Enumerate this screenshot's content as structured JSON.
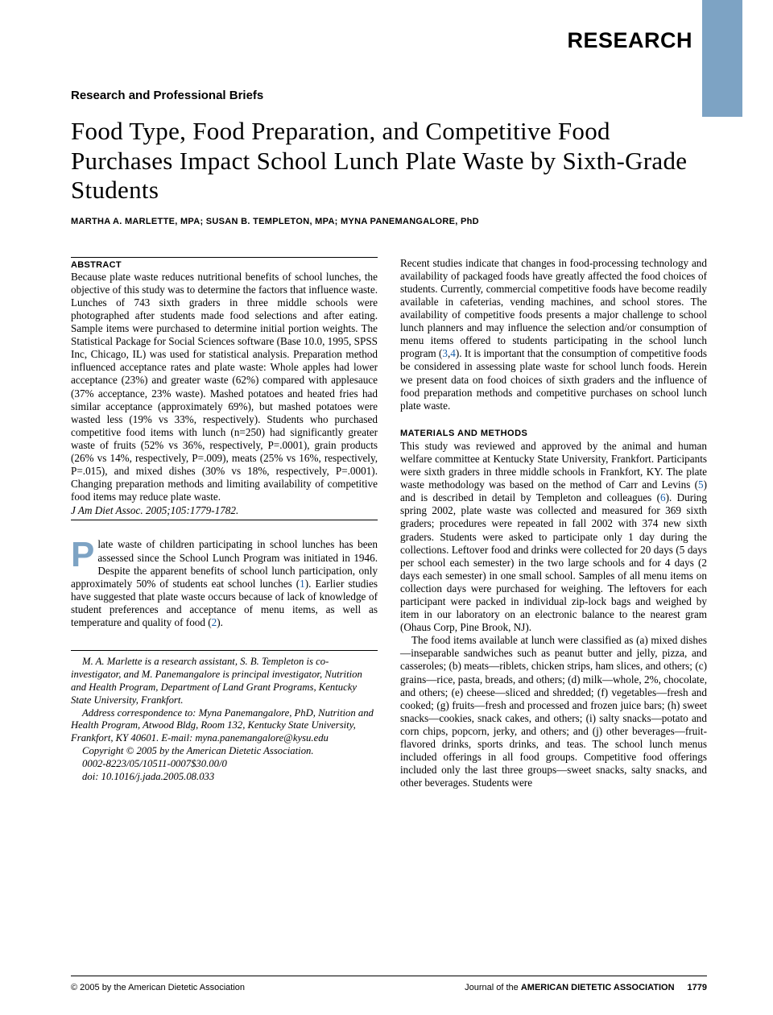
{
  "colors": {
    "accent": "#7da3c4",
    "link": "#1a5fa8",
    "text": "#000000",
    "background": "#ffffff"
  },
  "header": {
    "research": "RESEARCH",
    "brief": "Research and Professional Briefs"
  },
  "title": "Food Type, Food Preparation, and Competitive Food Purchases Impact School Lunch Plate Waste by Sixth-Grade Students",
  "authors": "MARTHA A. MARLETTE, MPA; SUSAN B. TEMPLETON, MPA; MYNA PANEMANGALORE, PhD",
  "abstract": {
    "label": "ABSTRACT",
    "body": "Because plate waste reduces nutritional benefits of school lunches, the objective of this study was to determine the factors that influence waste. Lunches of 743 sixth graders in three middle schools were photographed after students made food selections and after eating. Sample items were purchased to determine initial portion weights. The Statistical Package for Social Sciences software (Base 10.0, 1995, SPSS Inc, Chicago, IL) was used for statistical analysis. Preparation method influenced acceptance rates and plate waste: Whole apples had lower acceptance (23%) and greater waste (62%) compared with applesauce (37% acceptance, 23% waste). Mashed potatoes and heated fries had similar acceptance (approximately 69%), but mashed potatoes were wasted less (19% vs 33%, respectively). Students who purchased competitive food items with lunch (n=250) had significantly greater waste of fruits (52% vs 36%, respectively, P=.0001), grain products (26% vs 14%, respectively, P=.009), meats (25% vs 16%, respectively, P=.015), and mixed dishes (30% vs 18%, respectively, P=.0001). Changing preparation methods and limiting availability of competitive food items may reduce plate waste.",
    "citation": "J Am Diet Assoc. 2005;105:1779-1782."
  },
  "intro": {
    "dropcap": "P",
    "para1": "late waste of children participating in school lunches has been assessed since the School Lunch Program was initiated in 1946. Despite the apparent benefits of school lunch participation, only approximately 50% of students eat school lunches (1). Earlier studies have suggested that plate waste occurs because of lack of knowledge of student preferences and acceptance of menu items, as well as temperature and quality of food (2)."
  },
  "authorblock": {
    "affil": "M. A. Marlette is a research assistant, S. B. Templeton is co-investigator, and M. Panemangalore is principal investigator, Nutrition and Health Program, Department of Land Grant Programs, Kentucky State University, Frankfort.",
    "corr": "Address correspondence to: Myna Panemangalore, PhD, Nutrition and Health Program, Atwood Bldg, Room 132, Kentucky State University, Frankfort, KY 40601. E-mail: myna.panemangalore@kysu.edu",
    "copyright": "Copyright © 2005 by the American Dietetic Association.",
    "code": "0002-8223/05/10511-0007$30.00/0",
    "doi": "doi: 10.1016/j.jada.2005.08.033"
  },
  "col2": {
    "para1": "Recent studies indicate that changes in food-processing technology and availability of packaged foods have greatly affected the food choices of students. Currently, commercial competitive foods have become readily available in cafeterias, vending machines, and school stores. The availability of competitive foods presents a major challenge to school lunch planners and may influence the selection and/or consumption of menu items offered to students participating in the school lunch program (3,4). It is important that the consumption of competitive foods be considered in assessing plate waste for school lunch foods. Herein we present data on food choices of sixth graders and the influence of food preparation methods and competitive purchases on school lunch plate waste.",
    "methods_head": "MATERIALS AND METHODS",
    "para2": "This study was reviewed and approved by the animal and human welfare committee at Kentucky State University, Frankfort. Participants were sixth graders in three middle schools in Frankfort, KY. The plate waste methodology was based on the method of Carr and Levins (5) and is described in detail by Templeton and colleagues (6). During spring 2002, plate waste was collected and measured for 369 sixth graders; procedures were repeated in fall 2002 with 374 new sixth graders. Students were asked to participate only 1 day during the collections. Leftover food and drinks were collected for 20 days (5 days per school each semester) in the two large schools and for 4 days (2 days each semester) in one small school. Samples of all menu items on collection days were purchased for weighing. The leftovers for each participant were packed in individual zip-lock bags and weighed by item in our laboratory on an electronic balance to the nearest gram (Ohaus Corp, Pine Brook, NJ).",
    "para3": "The food items available at lunch were classified as (a) mixed dishes—inseparable sandwiches such as peanut butter and jelly, pizza, and casseroles; (b) meats—riblets, chicken strips, ham slices, and others; (c) grains—rice, pasta, breads, and others; (d) milk—whole, 2%, chocolate, and others; (e) cheese—sliced and shredded; (f) vegetables—fresh and cooked; (g) fruits—fresh and processed and frozen juice bars; (h) sweet snacks—cookies, snack cakes, and others; (i) salty snacks—potato and corn chips, popcorn, jerky, and others; and (j) other beverages—fruit-flavored drinks, sports drinks, and teas. The school lunch menus included offerings in all food groups. Competitive food offerings included only the last three groups—sweet snacks, salty snacks, and other beverages. Students were"
  },
  "footer": {
    "left": "© 2005 by the American Dietetic Association",
    "journal_prefix": "Journal of the ",
    "journal_bold": "AMERICAN DIETETIC ASSOCIATION",
    "page": "1779"
  }
}
